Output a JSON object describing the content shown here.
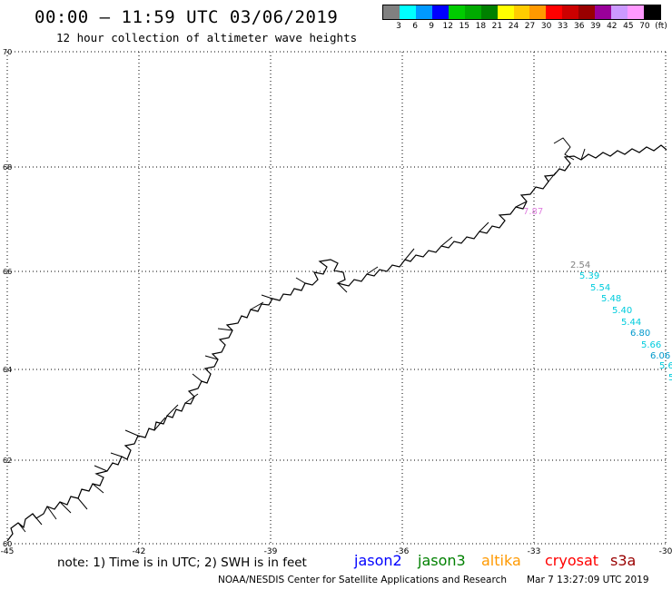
{
  "title": "00:00 – 11:59 UTC 03/06/2019",
  "subtitle": "12 hour collection of altimeter wave heights",
  "legend": {
    "colors": [
      "#808080",
      "#00ffff",
      "#0099ff",
      "#0000ff",
      "#00cc00",
      "#00aa00",
      "#008000",
      "#ffff00",
      "#ffcc00",
      "#ff9900",
      "#ff0000",
      "#cc0000",
      "#990000",
      "#990099",
      "#cc99ff",
      "#ff99ff",
      "#000000"
    ],
    "ticks": [
      "3",
      "6",
      "9",
      "12",
      "15",
      "18",
      "21",
      "24",
      "27",
      "30",
      "33",
      "36",
      "39",
      "42",
      "45",
      "70",
      "(ft)"
    ]
  },
  "map": {
    "lat_labels": [
      "70",
      "68",
      "66",
      "64",
      "62",
      "60"
    ],
    "lon_labels": [
      "-45",
      "-42",
      "-39",
      "-36",
      "-33",
      "-30"
    ]
  },
  "observations": [
    {
      "label": "7.87",
      "color": "#e080e0"
    },
    {
      "label": "2.54",
      "color": "#808080"
    },
    {
      "label": "5.39",
      "color": "#00ccdd"
    },
    {
      "label": "5.54",
      "color": "#00ccdd"
    },
    {
      "label": "5.48",
      "color": "#00ccdd"
    },
    {
      "label": "5.40",
      "color": "#00ccdd"
    },
    {
      "label": "5.44",
      "color": "#00ccdd"
    },
    {
      "label": "6.80",
      "color": "#0099cc"
    },
    {
      "label": "5.66",
      "color": "#00ccdd"
    },
    {
      "label": "6.06",
      "color": "#0099cc"
    },
    {
      "label": "5.6",
      "color": "#00ccdd"
    },
    {
      "label": "5",
      "color": "#00ccdd"
    }
  ],
  "footer": {
    "note": "note: 1) Time is in UTC; 2) SWH is in feet",
    "satellites": [
      {
        "name": "jason2",
        "color": "#0000ff"
      },
      {
        "name": "jason3",
        "color": "#008000"
      },
      {
        "name": "altika",
        "color": "#ff9900"
      },
      {
        "name": "cryosat",
        "color": "#ff0000"
      },
      {
        "name": "s3a",
        "color": "#990000"
      }
    ],
    "credit": "NOAA/NESDIS Center for Satellite Applications and Research",
    "timestamp": "Mar  7 13:27:09 UTC 2019"
  }
}
